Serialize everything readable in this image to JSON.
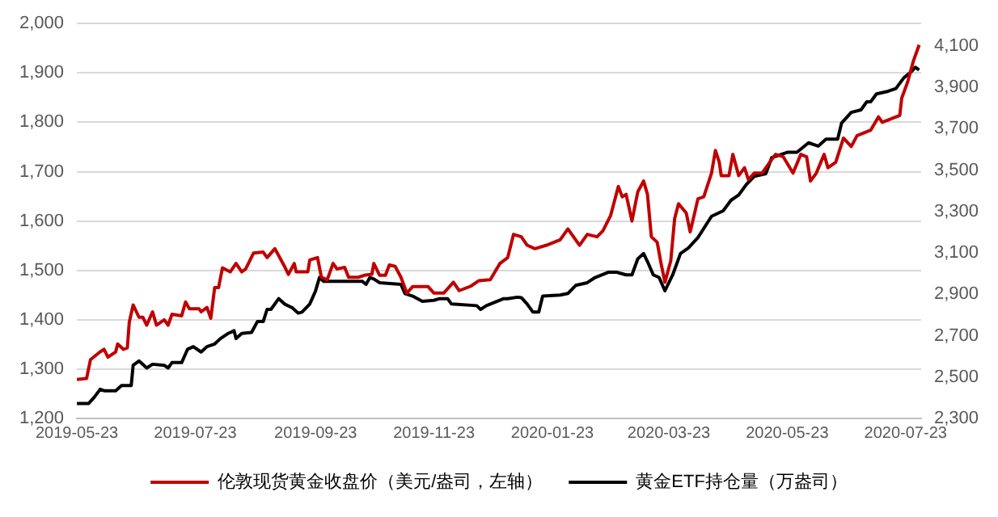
{
  "chart_data": {
    "type": "line",
    "xlim": [
      "2019-05-23",
      "2020-07-31"
    ],
    "xticks": [
      "2019-05-23",
      "2019-07-23",
      "2019-09-23",
      "2019-11-23",
      "2020-01-23",
      "2020-03-23",
      "2020-05-23",
      "2020-07-23"
    ],
    "ylim": [
      1200,
      2000
    ],
    "yticks": [
      {
        "value": 1200,
        "label": "1,200"
      },
      {
        "value": 1300,
        "label": "1,300"
      },
      {
        "value": 1400,
        "label": "1,400"
      },
      {
        "value": 1500,
        "label": "1,500"
      },
      {
        "value": 1600,
        "label": "1,600"
      },
      {
        "value": 1700,
        "label": "1,700"
      },
      {
        "value": 1800,
        "label": "1,800"
      },
      {
        "value": 1900,
        "label": "1,900"
      },
      {
        "value": 2000,
        "label": "2,000"
      }
    ],
    "y2lim": [
      2300,
      4208
    ],
    "y2ticks": [
      {
        "value": 2300,
        "label": "2,300"
      },
      {
        "value": 2500,
        "label": "2,500"
      },
      {
        "value": 2700,
        "label": "2,700"
      },
      {
        "value": 2900,
        "label": "2,900"
      },
      {
        "value": 3100,
        "label": "3,100"
      },
      {
        "value": 3300,
        "label": "3,300"
      },
      {
        "value": 3500,
        "label": "3,500"
      },
      {
        "value": 3700,
        "label": "3,700"
      },
      {
        "value": 3900,
        "label": "3,900"
      },
      {
        "value": 4100,
        "label": "4,100"
      }
    ],
    "grid": "y",
    "legend": "bottom",
    "marker": "none",
    "line_style": "solid",
    "series": [
      {
        "name": "伦敦现货黄金收盘价（美元/盎司，左轴）",
        "color": "#c00000",
        "x": [
          "2019-05-23",
          "2019-05-28",
          "2019-05-30",
          "2019-06-04",
          "2019-06-06",
          "2019-06-08",
          "2019-06-12",
          "2019-06-13",
          "2019-06-16",
          "2019-06-18",
          "2019-06-19",
          "2019-06-21",
          "2019-06-24",
          "2019-06-26",
          "2019-06-28",
          "2019-07-01",
          "2019-07-03",
          "2019-07-07",
          "2019-07-09",
          "2019-07-11",
          "2019-07-16",
          "2019-07-18",
          "2019-07-20",
          "2019-07-25",
          "2019-07-26",
          "2019-07-29",
          "2019-07-31",
          "2019-08-02",
          "2019-08-04",
          "2019-08-06",
          "2019-08-10",
          "2019-08-13",
          "2019-08-16",
          "2019-08-18",
          "2019-08-22",
          "2019-08-27",
          "2019-08-29",
          "2019-09-02",
          "2019-09-07",
          "2019-09-09",
          "2019-09-12",
          "2019-09-13",
          "2019-09-19",
          "2019-09-20",
          "2019-09-24",
          "2019-09-26",
          "2019-09-29",
          "2019-10-02",
          "2019-10-04",
          "2019-10-08",
          "2019-10-10",
          "2019-10-15",
          "2019-10-18",
          "2019-10-22",
          "2019-10-23",
          "2019-10-26",
          "2019-10-29",
          "2019-10-31",
          "2019-11-03",
          "2019-11-06",
          "2019-11-09",
          "2019-11-12",
          "2019-11-20",
          "2019-11-23",
          "2019-11-28",
          "2019-12-03",
          "2019-12-06",
          "2019-12-12",
          "2019-12-16",
          "2019-12-22",
          "2019-12-27",
          "2019-12-31",
          "2020-01-03",
          "2020-01-07",
          "2020-01-10",
          "2020-01-14",
          "2020-01-20",
          "2020-01-27",
          "2020-01-31",
          "2020-02-06",
          "2020-02-10",
          "2020-02-15",
          "2020-02-18",
          "2020-02-22",
          "2020-02-26",
          "2020-02-28",
          "2020-03-01",
          "2020-03-04",
          "2020-03-07",
          "2020-03-10",
          "2020-03-12",
          "2020-03-14",
          "2020-03-17",
          "2020-03-19",
          "2020-03-21",
          "2020-03-24",
          "2020-03-26",
          "2020-03-28",
          "2020-04-01",
          "2020-04-03",
          "2020-04-05",
          "2020-04-07",
          "2020-04-10",
          "2020-04-14",
          "2020-04-16",
          "2020-04-18",
          "2020-04-19",
          "2020-04-23",
          "2020-04-25",
          "2020-04-28",
          "2020-05-01",
          "2020-05-03",
          "2020-05-06",
          "2020-05-10",
          "2020-05-14",
          "2020-05-17",
          "2020-05-21",
          "2020-05-26",
          "2020-05-30",
          "2020-06-02",
          "2020-06-04",
          "2020-06-07",
          "2020-06-11",
          "2020-06-13",
          "2020-06-17",
          "2020-06-21",
          "2020-06-25",
          "2020-06-28",
          "2020-07-05",
          "2020-07-09",
          "2020-07-11",
          "2020-07-20",
          "2020-07-21",
          "2020-07-24",
          "2020-07-27",
          "2020-07-30"
        ],
        "values": [
          1279,
          1281,
          1319,
          1335,
          1340,
          1324,
          1335,
          1351,
          1340,
          1343,
          1395,
          1430,
          1405,
          1405,
          1389,
          1416,
          1389,
          1400,
          1389,
          1411,
          1408,
          1436,
          1422,
          1422,
          1416,
          1425,
          1403,
          1465,
          1465,
          1505,
          1497,
          1514,
          1497,
          1503,
          1535,
          1537,
          1526,
          1544,
          1508,
          1492,
          1514,
          1497,
          1497,
          1521,
          1526,
          1486,
          1481,
          1514,
          1503,
          1506,
          1486,
          1486,
          1490,
          1492,
          1514,
          1490,
          1490,
          1511,
          1508,
          1486,
          1454,
          1467,
          1467,
          1454,
          1454,
          1476,
          1459,
          1468,
          1479,
          1481,
          1514,
          1526,
          1573,
          1568,
          1551,
          1544,
          1551,
          1562,
          1584,
          1551,
          1573,
          1568,
          1580,
          1611,
          1670,
          1649,
          1654,
          1600,
          1659,
          1681,
          1654,
          1568,
          1557,
          1514,
          1476,
          1519,
          1605,
          1635,
          1616,
          1578,
          1611,
          1645,
          1649,
          1697,
          1743,
          1719,
          1692,
          1692,
          1735,
          1692,
          1708,
          1684,
          1697,
          1697,
          1719,
          1735,
          1730,
          1697,
          1735,
          1730,
          1681,
          1697,
          1735,
          1708,
          1719,
          1768,
          1751,
          1773,
          1784,
          1811,
          1800,
          1814,
          1849,
          1881,
          1924,
          1957
        ]
      },
      {
        "name": "黄金ETF持仓量（万盎司）",
        "color": "#000000",
        "axis": "y2",
        "x": [
          "2019-05-23",
          "2019-05-29",
          "2019-06-01",
          "2019-06-04",
          "2019-06-06",
          "2019-06-12",
          "2019-06-15",
          "2019-06-20",
          "2019-06-21",
          "2019-06-24",
          "2019-06-28",
          "2019-07-01",
          "2019-07-07",
          "2019-07-09",
          "2019-07-11",
          "2019-07-16",
          "2019-07-19",
          "2019-07-22",
          "2019-07-26",
          "2019-07-29",
          "2019-08-02",
          "2019-08-05",
          "2019-08-09",
          "2019-08-12",
          "2019-08-13",
          "2019-08-16",
          "2019-08-21",
          "2019-08-24",
          "2019-08-27",
          "2019-08-29",
          "2019-08-31",
          "2019-09-04",
          "2019-09-07",
          "2019-09-11",
          "2019-09-14",
          "2019-09-16",
          "2019-09-20",
          "2019-09-23",
          "2019-09-25",
          "2019-09-27",
          "2019-10-01",
          "2019-10-17",
          "2019-10-19",
          "2019-10-21",
          "2019-10-23",
          "2019-10-26",
          "2019-11-06",
          "2019-11-08",
          "2019-11-12",
          "2019-11-17",
          "2019-11-23",
          "2019-11-26",
          "2019-11-30",
          "2019-12-02",
          "2019-12-15",
          "2019-12-17",
          "2019-12-20",
          "2019-12-29",
          "2019-12-31",
          "2020-01-05",
          "2020-01-07",
          "2020-01-10",
          "2020-01-13",
          "2020-01-16",
          "2020-01-18",
          "2020-01-27",
          "2020-01-31",
          "2020-02-04",
          "2020-02-10",
          "2020-02-14",
          "2020-02-21",
          "2020-02-25",
          "2020-03-01",
          "2020-03-04",
          "2020-03-07",
          "2020-03-10",
          "2020-03-12",
          "2020-03-15",
          "2020-03-18",
          "2020-03-21",
          "2020-03-25",
          "2020-03-29",
          "2020-04-02",
          "2020-04-07",
          "2020-04-14",
          "2020-04-20",
          "2020-04-24",
          "2020-04-28",
          "2020-05-02",
          "2020-05-06",
          "2020-05-12",
          "2020-05-15",
          "2020-05-23",
          "2020-05-28",
          "2020-06-03",
          "2020-06-08",
          "2020-06-12",
          "2020-06-18",
          "2020-06-20",
          "2020-06-25",
          "2020-06-30",
          "2020-07-03",
          "2020-07-05",
          "2020-07-08",
          "2020-07-14",
          "2020-07-18",
          "2020-07-22",
          "2020-07-26",
          "2020-07-28",
          "2020-07-30"
        ],
        "values": [
          2372,
          2372,
          2403,
          2441,
          2434,
          2434,
          2459,
          2459,
          2557,
          2578,
          2544,
          2562,
          2557,
          2544,
          2570,
          2570,
          2634,
          2647,
          2621,
          2647,
          2660,
          2686,
          2711,
          2724,
          2686,
          2711,
          2716,
          2768,
          2768,
          2827,
          2827,
          2879,
          2853,
          2835,
          2809,
          2814,
          2853,
          2917,
          2981,
          2963,
          2963,
          2963,
          2948,
          2981,
          2974,
          2956,
          2948,
          2904,
          2891,
          2866,
          2871,
          2879,
          2879,
          2853,
          2845,
          2827,
          2845,
          2879,
          2879,
          2886,
          2884,
          2853,
          2814,
          2814,
          2891,
          2896,
          2904,
          2943,
          2956,
          2981,
          3007,
          3007,
          2994,
          2994,
          3071,
          3097,
          3058,
          2994,
          2981,
          2917,
          2994,
          3097,
          3123,
          3174,
          3277,
          3303,
          3354,
          3380,
          3431,
          3470,
          3483,
          3560,
          3586,
          3586,
          3632,
          3616,
          3650,
          3650,
          3727,
          3779,
          3791,
          3830,
          3830,
          3868,
          3881,
          3894,
          3945,
          3976,
          3997,
          3984
        ]
      }
    ]
  }
}
